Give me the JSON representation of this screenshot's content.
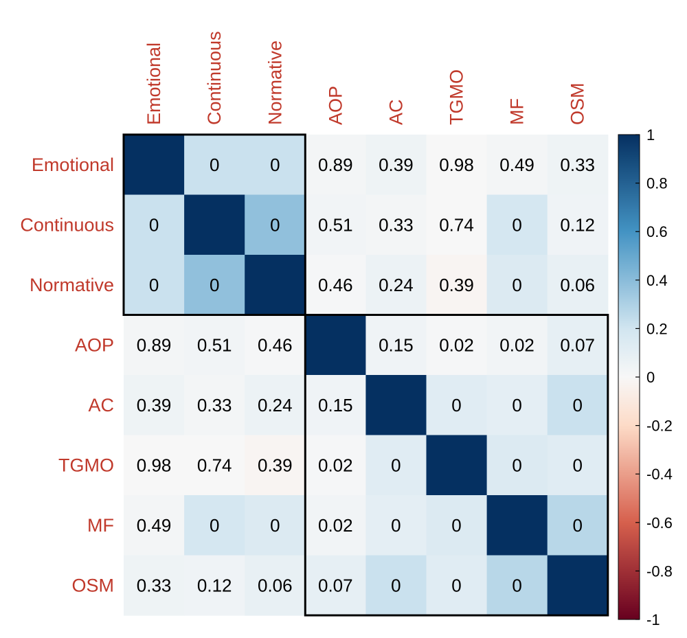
{
  "chart_data": {
    "type": "heatmap",
    "variables": [
      "Emotional",
      "Continuous",
      "Normative",
      "AOP",
      "AC",
      "TGMO",
      "MF",
      "OSM"
    ],
    "display_labels": [
      [
        "",
        "0",
        "0",
        "0.89",
        "0.39",
        "0.98",
        "0.49",
        "0.33"
      ],
      [
        "0",
        "",
        "0",
        "0.51",
        "0.33",
        "0.74",
        "0",
        "0.12"
      ],
      [
        "0",
        "0",
        "",
        "0.46",
        "0.24",
        "0.39",
        "0",
        "0.06"
      ],
      [
        "0.89",
        "0.51",
        "0.46",
        "",
        "0.15",
        "0.02",
        "0.02",
        "0.07"
      ],
      [
        "0.39",
        "0.33",
        "0.24",
        "0.15",
        "",
        "0",
        "0",
        "0"
      ],
      [
        "0.98",
        "0.74",
        "0.39",
        "0.02",
        "0",
        "",
        "0",
        "0"
      ],
      [
        "0.49",
        "0",
        "0",
        "0.02",
        "0",
        "0",
        "",
        "0"
      ],
      [
        "0.33",
        "0.12",
        "0.06",
        "0.07",
        "0",
        "0",
        "0",
        ""
      ]
    ],
    "fill_values": [
      [
        1.0,
        0.22,
        0.22,
        0.02,
        0.05,
        0.0,
        0.02,
        0.05
      ],
      [
        0.22,
        1.0,
        0.38,
        0.03,
        0.02,
        0.0,
        0.18,
        0.04
      ],
      [
        0.22,
        0.38,
        1.0,
        0.01,
        0.06,
        -0.02,
        0.14,
        0.08
      ],
      [
        0.02,
        0.03,
        0.01,
        1.0,
        0.04,
        0.01,
        0.03,
        0.09
      ],
      [
        0.05,
        0.02,
        0.06,
        0.04,
        1.0,
        0.12,
        0.1,
        0.22
      ],
      [
        0.0,
        0.0,
        -0.02,
        0.01,
        0.12,
        1.0,
        0.14,
        0.12
      ],
      [
        0.02,
        0.18,
        0.14,
        0.03,
        0.1,
        0.14,
        1.0,
        0.27
      ],
      [
        0.05,
        0.04,
        0.08,
        0.09,
        0.22,
        0.12,
        0.27,
        1.0
      ]
    ],
    "clusters": [
      {
        "start": 0,
        "end": 2
      },
      {
        "start": 3,
        "end": 7
      }
    ],
    "colorbar": {
      "min": -1,
      "max": 1,
      "ticks": [
        "1",
        "0.8",
        "0.6",
        "0.4",
        "0.2",
        "0",
        "-0.2",
        "-0.4",
        "-0.6",
        "-0.8",
        "-1"
      ]
    },
    "label_color": "#C0392B",
    "colors": {
      "neg_dark": "#67001F",
      "neg_mid": "#D6604D",
      "neg_light": "#FDDBC7",
      "zero": "#F7F7F7",
      "pos_light": "#D1E5F0",
      "pos_mid": "#4393C3",
      "pos_dark": "#053061"
    }
  }
}
